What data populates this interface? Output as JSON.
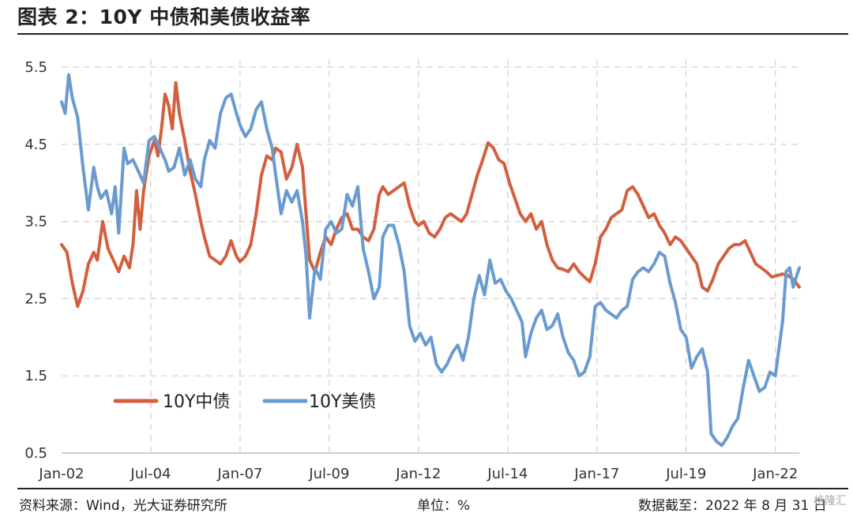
{
  "header": {
    "title": "图表 2：10Y 中债和美债收益率"
  },
  "footer": {
    "source": "资料来源：Wind，光大证券研究所",
    "unit": "单位：%",
    "date": "数据截至：2022 年 8 月 31 日",
    "watermark": "格隆汇"
  },
  "chart_data": {
    "type": "line",
    "title": "",
    "xlabel": "",
    "ylabel": "",
    "x_tick_labels": [
      "Jan-02",
      "Jul-04",
      "Jan-07",
      "Jul-09",
      "Jan-12",
      "Jul-14",
      "Jan-17",
      "Jul-19",
      "Jan-22"
    ],
    "x_ticks": [
      2002.0,
      2004.5,
      2007.0,
      2009.5,
      2012.0,
      2014.5,
      2017.0,
      2019.5,
      2022.0
    ],
    "xlim": [
      2002.0,
      2022.67
    ],
    "y_tick_labels": [
      "0.5",
      "1.5",
      "2.5",
      "3.5",
      "4.5",
      "5.5"
    ],
    "y_ticks": [
      0.5,
      1.5,
      2.5,
      3.5,
      4.5,
      5.5
    ],
    "ylim": [
      0.5,
      5.5
    ],
    "grid": "dashed vertical and horizontal",
    "legend_position": "bottom-left",
    "series": [
      {
        "name": "10Y中债",
        "color": "#D2603F",
        "points": [
          [
            2002.0,
            3.2
          ],
          [
            2002.15,
            3.1
          ],
          [
            2002.3,
            2.7
          ],
          [
            2002.45,
            2.4
          ],
          [
            2002.6,
            2.6
          ],
          [
            2002.75,
            2.95
          ],
          [
            2002.9,
            3.1
          ],
          [
            2003.0,
            3.0
          ],
          [
            2003.15,
            3.5
          ],
          [
            2003.3,
            3.15
          ],
          [
            2003.45,
            3.0
          ],
          [
            2003.6,
            2.85
          ],
          [
            2003.75,
            3.05
          ],
          [
            2003.9,
            2.9
          ],
          [
            2004.0,
            3.2
          ],
          [
            2004.1,
            3.9
          ],
          [
            2004.2,
            3.4
          ],
          [
            2004.3,
            3.9
          ],
          [
            2004.45,
            4.35
          ],
          [
            2004.6,
            4.55
          ],
          [
            2004.7,
            4.35
          ],
          [
            2004.8,
            4.7
          ],
          [
            2004.9,
            5.15
          ],
          [
            2005.0,
            5.0
          ],
          [
            2005.1,
            4.7
          ],
          [
            2005.2,
            5.3
          ],
          [
            2005.3,
            4.9
          ],
          [
            2005.45,
            4.55
          ],
          [
            2005.6,
            4.15
          ],
          [
            2005.75,
            3.85
          ],
          [
            2005.9,
            3.5
          ],
          [
            2006.0,
            3.3
          ],
          [
            2006.15,
            3.05
          ],
          [
            2006.3,
            3.0
          ],
          [
            2006.45,
            2.95
          ],
          [
            2006.6,
            3.05
          ],
          [
            2006.75,
            3.25
          ],
          [
            2006.9,
            3.05
          ],
          [
            2007.0,
            2.98
          ],
          [
            2007.15,
            3.05
          ],
          [
            2007.3,
            3.2
          ],
          [
            2007.45,
            3.6
          ],
          [
            2007.6,
            4.1
          ],
          [
            2007.75,
            4.35
          ],
          [
            2007.9,
            4.3
          ],
          [
            2008.0,
            4.45
          ],
          [
            2008.15,
            4.4
          ],
          [
            2008.3,
            4.05
          ],
          [
            2008.45,
            4.2
          ],
          [
            2008.6,
            4.5
          ],
          [
            2008.75,
            4.2
          ],
          [
            2008.85,
            3.6
          ],
          [
            2008.95,
            3.0
          ],
          [
            2009.1,
            2.85
          ],
          [
            2009.25,
            3.1
          ],
          [
            2009.4,
            3.3
          ],
          [
            2009.55,
            3.2
          ],
          [
            2009.7,
            3.4
          ],
          [
            2009.85,
            3.55
          ],
          [
            2010.0,
            3.6
          ],
          [
            2010.15,
            3.4
          ],
          [
            2010.3,
            3.4
          ],
          [
            2010.45,
            3.3
          ],
          [
            2010.6,
            3.25
          ],
          [
            2010.75,
            3.4
          ],
          [
            2010.9,
            3.85
          ],
          [
            2011.0,
            3.95
          ],
          [
            2011.15,
            3.85
          ],
          [
            2011.3,
            3.9
          ],
          [
            2011.45,
            3.95
          ],
          [
            2011.6,
            4.0
          ],
          [
            2011.75,
            3.7
          ],
          [
            2011.9,
            3.5
          ],
          [
            2012.0,
            3.45
          ],
          [
            2012.15,
            3.5
          ],
          [
            2012.3,
            3.35
          ],
          [
            2012.45,
            3.3
          ],
          [
            2012.6,
            3.4
          ],
          [
            2012.75,
            3.55
          ],
          [
            2012.9,
            3.6
          ],
          [
            2013.05,
            3.55
          ],
          [
            2013.2,
            3.5
          ],
          [
            2013.35,
            3.6
          ],
          [
            2013.5,
            3.85
          ],
          [
            2013.65,
            4.1
          ],
          [
            2013.8,
            4.3
          ],
          [
            2013.95,
            4.52
          ],
          [
            2014.1,
            4.45
          ],
          [
            2014.25,
            4.3
          ],
          [
            2014.4,
            4.25
          ],
          [
            2014.55,
            4.0
          ],
          [
            2014.7,
            3.8
          ],
          [
            2014.85,
            3.6
          ],
          [
            2015.0,
            3.5
          ],
          [
            2015.15,
            3.6
          ],
          [
            2015.3,
            3.4
          ],
          [
            2015.45,
            3.5
          ],
          [
            2015.6,
            3.2
          ],
          [
            2015.75,
            3.0
          ],
          [
            2015.9,
            2.9
          ],
          [
            2016.05,
            2.88
          ],
          [
            2016.2,
            2.85
          ],
          [
            2016.35,
            2.95
          ],
          [
            2016.5,
            2.85
          ],
          [
            2016.65,
            2.78
          ],
          [
            2016.8,
            2.72
          ],
          [
            2016.95,
            2.95
          ],
          [
            2017.1,
            3.3
          ],
          [
            2017.25,
            3.4
          ],
          [
            2017.4,
            3.55
          ],
          [
            2017.55,
            3.6
          ],
          [
            2017.7,
            3.65
          ],
          [
            2017.85,
            3.9
          ],
          [
            2018.0,
            3.95
          ],
          [
            2018.15,
            3.85
          ],
          [
            2018.3,
            3.7
          ],
          [
            2018.45,
            3.55
          ],
          [
            2018.6,
            3.6
          ],
          [
            2018.75,
            3.45
          ],
          [
            2018.9,
            3.35
          ],
          [
            2019.05,
            3.2
          ],
          [
            2019.2,
            3.3
          ],
          [
            2019.35,
            3.25
          ],
          [
            2019.5,
            3.15
          ],
          [
            2019.65,
            3.05
          ],
          [
            2019.8,
            2.95
          ],
          [
            2019.95,
            2.65
          ],
          [
            2020.1,
            2.6
          ],
          [
            2020.25,
            2.75
          ],
          [
            2020.4,
            2.95
          ],
          [
            2020.55,
            3.05
          ],
          [
            2020.7,
            3.15
          ],
          [
            2020.85,
            3.2
          ],
          [
            2021.0,
            3.2
          ],
          [
            2021.15,
            3.25
          ],
          [
            2021.3,
            3.1
          ],
          [
            2021.45,
            2.95
          ],
          [
            2021.6,
            2.9
          ],
          [
            2021.75,
            2.85
          ],
          [
            2021.9,
            2.78
          ],
          [
            2022.05,
            2.8
          ],
          [
            2022.2,
            2.82
          ],
          [
            2022.35,
            2.8
          ],
          [
            2022.5,
            2.75
          ],
          [
            2022.67,
            2.65
          ]
        ]
      },
      {
        "name": "10Y美债",
        "color": "#6A9BD0",
        "points": [
          [
            2002.0,
            5.05
          ],
          [
            2002.1,
            4.9
          ],
          [
            2002.2,
            5.4
          ],
          [
            2002.3,
            5.1
          ],
          [
            2002.45,
            4.85
          ],
          [
            2002.6,
            4.2
          ],
          [
            2002.75,
            3.65
          ],
          [
            2002.9,
            4.2
          ],
          [
            2003.0,
            3.95
          ],
          [
            2003.1,
            3.8
          ],
          [
            2003.25,
            3.9
          ],
          [
            2003.4,
            3.6
          ],
          [
            2003.5,
            3.95
          ],
          [
            2003.6,
            3.35
          ],
          [
            2003.75,
            4.45
          ],
          [
            2003.85,
            4.25
          ],
          [
            2004.0,
            4.3
          ],
          [
            2004.15,
            4.15
          ],
          [
            2004.3,
            4.0
          ],
          [
            2004.45,
            4.55
          ],
          [
            2004.6,
            4.6
          ],
          [
            2004.75,
            4.45
          ],
          [
            2004.9,
            4.3
          ],
          [
            2005.0,
            4.15
          ],
          [
            2005.15,
            4.2
          ],
          [
            2005.3,
            4.45
          ],
          [
            2005.45,
            4.1
          ],
          [
            2005.6,
            4.3
          ],
          [
            2005.75,
            4.05
          ],
          [
            2005.9,
            3.95
          ],
          [
            2006.0,
            4.3
          ],
          [
            2006.15,
            4.55
          ],
          [
            2006.3,
            4.45
          ],
          [
            2006.45,
            4.9
          ],
          [
            2006.6,
            5.1
          ],
          [
            2006.75,
            5.15
          ],
          [
            2006.9,
            4.9
          ],
          [
            2007.0,
            4.75
          ],
          [
            2007.15,
            4.6
          ],
          [
            2007.3,
            4.7
          ],
          [
            2007.45,
            4.95
          ],
          [
            2007.6,
            5.05
          ],
          [
            2007.75,
            4.7
          ],
          [
            2007.9,
            4.45
          ],
          [
            2008.0,
            4.1
          ],
          [
            2008.15,
            3.6
          ],
          [
            2008.3,
            3.9
          ],
          [
            2008.45,
            3.75
          ],
          [
            2008.6,
            3.9
          ],
          [
            2008.75,
            3.5
          ],
          [
            2008.85,
            3.05
          ],
          [
            2008.95,
            2.25
          ],
          [
            2009.1,
            2.9
          ],
          [
            2009.25,
            2.75
          ],
          [
            2009.4,
            3.4
          ],
          [
            2009.55,
            3.5
          ],
          [
            2009.7,
            3.35
          ],
          [
            2009.85,
            3.4
          ],
          [
            2010.0,
            3.85
          ],
          [
            2010.15,
            3.7
          ],
          [
            2010.3,
            3.95
          ],
          [
            2010.45,
            3.15
          ],
          [
            2010.6,
            2.85
          ],
          [
            2010.75,
            2.5
          ],
          [
            2010.9,
            2.65
          ],
          [
            2011.0,
            3.3
          ],
          [
            2011.15,
            3.45
          ],
          [
            2011.3,
            3.45
          ],
          [
            2011.45,
            3.2
          ],
          [
            2011.6,
            2.85
          ],
          [
            2011.75,
            2.15
          ],
          [
            2011.9,
            1.95
          ],
          [
            2012.05,
            2.05
          ],
          [
            2012.2,
            1.9
          ],
          [
            2012.35,
            2.0
          ],
          [
            2012.5,
            1.65
          ],
          [
            2012.65,
            1.55
          ],
          [
            2012.8,
            1.65
          ],
          [
            2012.95,
            1.8
          ],
          [
            2013.1,
            1.9
          ],
          [
            2013.25,
            1.7
          ],
          [
            2013.4,
            2.0
          ],
          [
            2013.55,
            2.5
          ],
          [
            2013.7,
            2.8
          ],
          [
            2013.85,
            2.55
          ],
          [
            2014.0,
            3.0
          ],
          [
            2014.15,
            2.7
          ],
          [
            2014.3,
            2.75
          ],
          [
            2014.45,
            2.6
          ],
          [
            2014.6,
            2.5
          ],
          [
            2014.75,
            2.35
          ],
          [
            2014.9,
            2.2
          ],
          [
            2015.0,
            1.75
          ],
          [
            2015.15,
            2.05
          ],
          [
            2015.3,
            2.25
          ],
          [
            2015.45,
            2.35
          ],
          [
            2015.6,
            2.1
          ],
          [
            2015.75,
            2.15
          ],
          [
            2015.9,
            2.3
          ],
          [
            2016.05,
            2.0
          ],
          [
            2016.2,
            1.8
          ],
          [
            2016.35,
            1.7
          ],
          [
            2016.5,
            1.5
          ],
          [
            2016.65,
            1.55
          ],
          [
            2016.8,
            1.75
          ],
          [
            2016.95,
            2.4
          ],
          [
            2017.1,
            2.45
          ],
          [
            2017.25,
            2.35
          ],
          [
            2017.4,
            2.3
          ],
          [
            2017.55,
            2.25
          ],
          [
            2017.7,
            2.35
          ],
          [
            2017.85,
            2.4
          ],
          [
            2018.0,
            2.75
          ],
          [
            2018.15,
            2.85
          ],
          [
            2018.3,
            2.9
          ],
          [
            2018.45,
            2.85
          ],
          [
            2018.6,
            2.95
          ],
          [
            2018.75,
            3.1
          ],
          [
            2018.9,
            3.05
          ],
          [
            2019.05,
            2.7
          ],
          [
            2019.2,
            2.45
          ],
          [
            2019.35,
            2.1
          ],
          [
            2019.5,
            2.0
          ],
          [
            2019.65,
            1.6
          ],
          [
            2019.8,
            1.75
          ],
          [
            2019.95,
            1.85
          ],
          [
            2020.1,
            1.55
          ],
          [
            2020.2,
            0.75
          ],
          [
            2020.35,
            0.65
          ],
          [
            2020.5,
            0.6
          ],
          [
            2020.65,
            0.7
          ],
          [
            2020.8,
            0.85
          ],
          [
            2020.95,
            0.95
          ],
          [
            2021.1,
            1.35
          ],
          [
            2021.25,
            1.7
          ],
          [
            2021.4,
            1.5
          ],
          [
            2021.55,
            1.3
          ],
          [
            2021.7,
            1.35
          ],
          [
            2021.85,
            1.55
          ],
          [
            2022.0,
            1.5
          ],
          [
            2022.1,
            1.85
          ],
          [
            2022.2,
            2.2
          ],
          [
            2022.3,
            2.85
          ],
          [
            2022.4,
            2.9
          ],
          [
            2022.5,
            2.65
          ],
          [
            2022.6,
            2.8
          ],
          [
            2022.67,
            2.9
          ]
        ]
      }
    ]
  }
}
